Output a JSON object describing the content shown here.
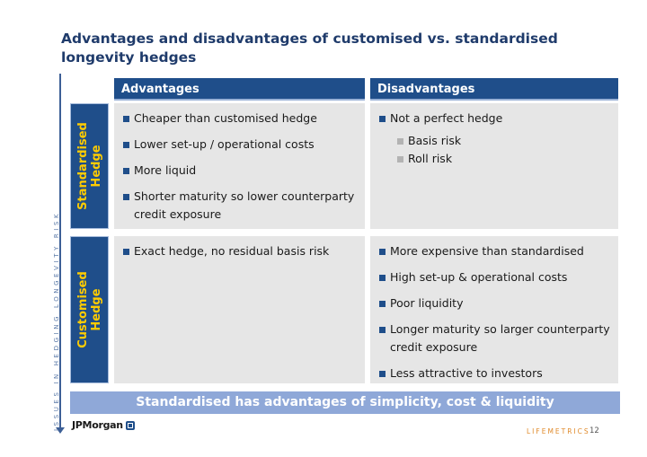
{
  "title": "Advantages and disadvantages of customised vs. standardised longevity hedges",
  "side_text": "ISSUES IN HEDGING LONGEVITY RISK",
  "headers": {
    "advantages": "Advantages",
    "disadvantages": "Disadvantages"
  },
  "rows": {
    "standardised": {
      "label_line1": "Standardised",
      "label_line2": "Hedge",
      "advantages": [
        "Cheaper than customised hedge",
        "Lower set-up / operational costs",
        "More liquid",
        "Shorter maturity so lower counterparty credit exposure"
      ],
      "disadvantages": {
        "main": "Not a perfect hedge",
        "sub": [
          "Basis risk",
          "Roll risk"
        ]
      }
    },
    "customised": {
      "label_line1": "Customised",
      "label_line2": "Hedge",
      "advantages": [
        "Exact hedge, no residual basis risk"
      ],
      "disadvantages": [
        "More expensive than standardised",
        "High set-up & operational costs",
        "Poor liquidity",
        "Longer maturity so larger counterparty credit exposure",
        "Less attractive to investors"
      ]
    }
  },
  "banner": "Standardised has advantages of simplicity, cost & liquidity",
  "footer": {
    "logo": "JPMorgan",
    "brand": "LIFEMETRICS",
    "page": "12"
  },
  "colors": {
    "navy": "#1f4e8a",
    "label_text": "#ffcc00",
    "cell_bg": "#e6e6e6",
    "banner_bg": "#8fa8d8",
    "brand": "#e08a2a"
  }
}
